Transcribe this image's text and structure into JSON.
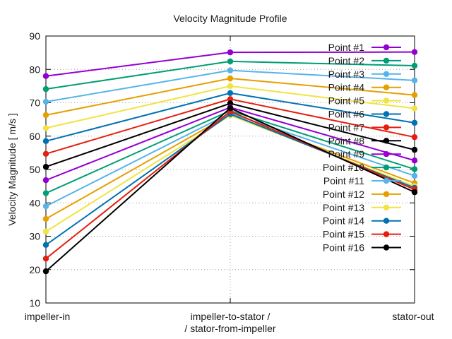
{
  "chart_data": {
    "type": "line",
    "title": "Velocity Magnitude Profile",
    "xlabel": "",
    "ylabel": "Velocity Magnitude [ m/s ]",
    "categories": [
      "impeller-in",
      "impeller-to-stator /\n/ stator-from-impeller",
      "stator-out"
    ],
    "category_lines": [
      [
        "impeller-in"
      ],
      [
        "impeller-to-stator /",
        "/ stator-from-impeller"
      ],
      [
        "stator-out"
      ]
    ],
    "ylim": [
      10,
      90
    ],
    "yticks": [
      10,
      20,
      30,
      40,
      50,
      60,
      70,
      80,
      90
    ],
    "grid": true,
    "legend_position": "top-right",
    "series": [
      {
        "name": "Point #1",
        "color": "#9400d3",
        "values": [
          78.0,
          85.1,
          85.2
        ]
      },
      {
        "name": "Point #2",
        "color": "#009e73",
        "values": [
          74.1,
          82.4,
          81.1
        ]
      },
      {
        "name": "Point #3",
        "color": "#56b4e9",
        "values": [
          70.3,
          79.7,
          76.7
        ]
      },
      {
        "name": "Point #4",
        "color": "#e69f00",
        "values": [
          66.3,
          77.3,
          72.3
        ]
      },
      {
        "name": "Point #5",
        "color": "#f0e442",
        "values": [
          62.4,
          75.0,
          68.3
        ]
      },
      {
        "name": "Point #6",
        "color": "#0072b2",
        "values": [
          58.5,
          72.9,
          64.0
        ]
      },
      {
        "name": "Point #7",
        "color": "#e51e10",
        "values": [
          54.7,
          71.1,
          59.7
        ]
      },
      {
        "name": "Point #8",
        "color": "#000000",
        "values": [
          50.8,
          69.8,
          55.9
        ]
      },
      {
        "name": "Point #9",
        "color": "#9400d3",
        "values": [
          46.8,
          68.6,
          52.7
        ]
      },
      {
        "name": "Point #10",
        "color": "#009e73",
        "values": [
          42.9,
          67.6,
          50.1
        ]
      },
      {
        "name": "Point #11",
        "color": "#56b4e9",
        "values": [
          39.0,
          66.9,
          48.1
        ]
      },
      {
        "name": "Point #12",
        "color": "#e69f00",
        "values": [
          35.2,
          66.5,
          45.9
        ]
      },
      {
        "name": "Point #13",
        "color": "#f0e442",
        "values": [
          31.4,
          66.2,
          45.0
        ]
      },
      {
        "name": "Point #14",
        "color": "#0072b2",
        "values": [
          27.4,
          66.6,
          44.5
        ]
      },
      {
        "name": "Point #15",
        "color": "#e51e10",
        "values": [
          23.3,
          67.4,
          44.0
        ]
      },
      {
        "name": "Point #16",
        "color": "#000000",
        "values": [
          19.5,
          68.4,
          43.2
        ]
      }
    ]
  }
}
